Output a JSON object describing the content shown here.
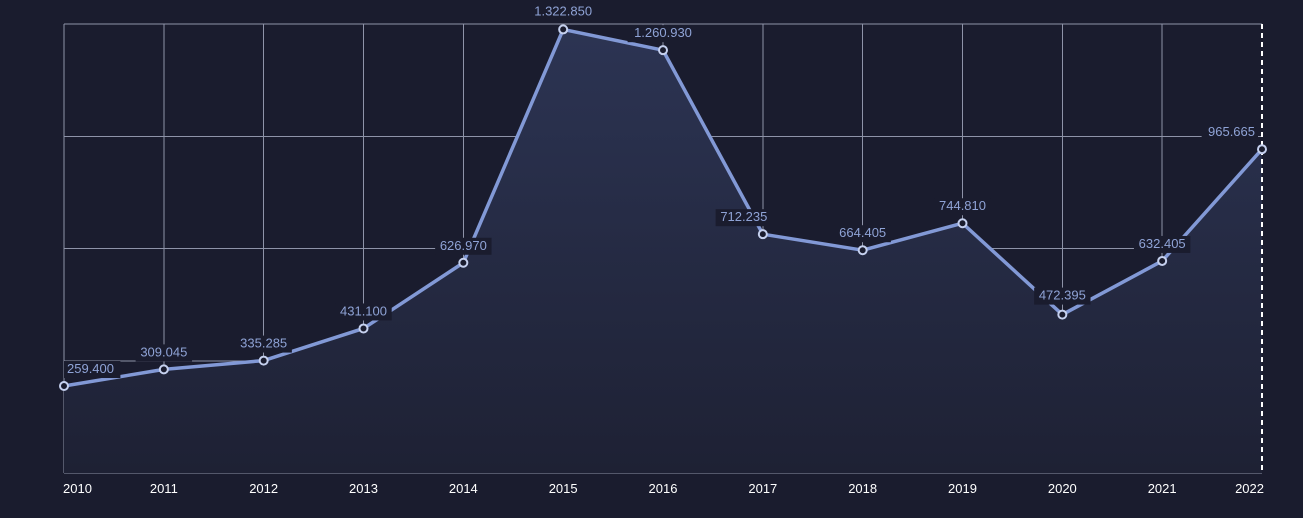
{
  "chart_data": {
    "type": "area",
    "title": "",
    "xlabel": "",
    "ylabel": "",
    "categories": [
      "2010",
      "2011",
      "2012",
      "2013",
      "2014",
      "2015",
      "2016",
      "2017",
      "2018",
      "2019",
      "2020",
      "2021",
      "2022"
    ],
    "series": [
      {
        "values": [
          259.4,
          309.045,
          335.285,
          431.1,
          626.97,
          1322.85,
          1260.93,
          712.235,
          664.405,
          744.81,
          472.395,
          632.405,
          965.665
        ],
        "labels": [
          "259.400",
          "309.045",
          "335.285",
          "431.100",
          "626.970",
          "1.322.850",
          "1.260.930",
          "712.235",
          "664.405",
          "744.810",
          "472.395",
          "632.405",
          "965.665"
        ]
      }
    ],
    "ylim": [
      0,
      1339
    ],
    "grid": true,
    "legend": "none",
    "colors": {
      "background": "#1a1c2e",
      "line": "#8299d6",
      "grid": "#8e93a8",
      "label": "#8fa3d6",
      "tick": "#ffffff",
      "marker_fill": "#1a1c2e",
      "crosshair": "#ffffff"
    }
  }
}
